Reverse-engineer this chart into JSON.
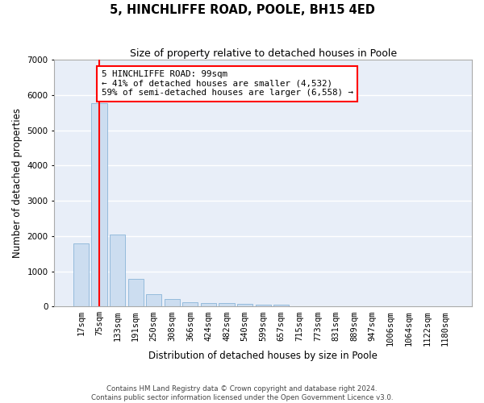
{
  "title": "5, HINCHLIFFE ROAD, POOLE, BH15 4ED",
  "subtitle": "Size of property relative to detached houses in Poole",
  "xlabel": "Distribution of detached houses by size in Poole",
  "ylabel": "Number of detached properties",
  "categories": [
    "17sqm",
    "75sqm",
    "133sqm",
    "191sqm",
    "250sqm",
    "308sqm",
    "366sqm",
    "424sqm",
    "482sqm",
    "540sqm",
    "599sqm",
    "657sqm",
    "715sqm",
    "773sqm",
    "831sqm",
    "889sqm",
    "947sqm",
    "1006sqm",
    "1064sqm",
    "1122sqm",
    "1180sqm"
  ],
  "values": [
    1780,
    5780,
    2050,
    790,
    360,
    215,
    130,
    100,
    95,
    80,
    60,
    50,
    0,
    0,
    0,
    0,
    0,
    0,
    0,
    0,
    0
  ],
  "bar_color": "#ccddf0",
  "bar_edge_color": "#8ab4d8",
  "vline_x": 1,
  "vline_color": "red",
  "annotation_text": "5 HINCHLIFFE ROAD: 99sqm\n← 41% of detached houses are smaller (4,532)\n59% of semi-detached houses are larger (6,558) →",
  "annotation_box_color": "white",
  "annotation_box_edge_color": "red",
  "ylim": [
    0,
    7000
  ],
  "yticks": [
    0,
    1000,
    2000,
    3000,
    4000,
    5000,
    6000,
    7000
  ],
  "background_color": "#e8eef8",
  "grid_color": "white",
  "footer_line1": "Contains HM Land Registry data © Crown copyright and database right 2024.",
  "footer_line2": "Contains public sector information licensed under the Open Government Licence v3.0."
}
